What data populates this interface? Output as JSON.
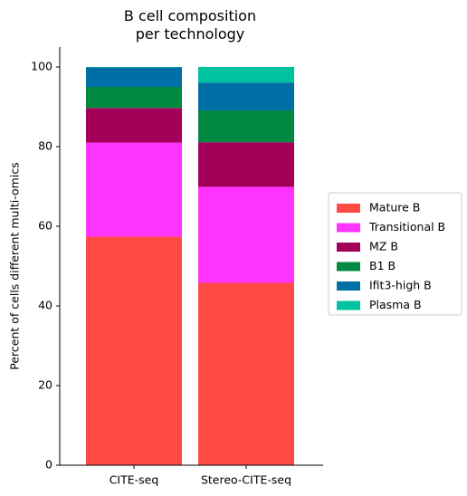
{
  "chart_data": {
    "type": "stacked_bar",
    "title": "B cell composition per technology",
    "y_label": "Percent of cells different multi-omics",
    "categories": [
      "CITE-seq",
      "Stereo-CITE-seq"
    ],
    "series": [
      {
        "name": "Mature B",
        "color": "#ff4a46",
        "values": [
          57.4,
          45.8
        ]
      },
      {
        "name": "Transitional B",
        "color": "#ff34ff",
        "values": [
          23.6,
          24.1
        ]
      },
      {
        "name": "MZ B",
        "color": "#a30059",
        "values": [
          8.7,
          11.2
        ]
      },
      {
        "name": "B1 B",
        "color": "#008941",
        "values": [
          5.3,
          8.0
        ]
      },
      {
        "name": "Ifit3-high B",
        "color": "#006fa6",
        "values": [
          4.9,
          7.0
        ]
      },
      {
        "name": "Plasma B",
        "color": "#00c2a0",
        "values": [
          0.1,
          3.9
        ]
      }
    ],
    "ylim": [
      0,
      105
    ],
    "yticks": [
      0,
      20,
      40,
      60,
      80,
      100
    ],
    "legend": "right"
  }
}
